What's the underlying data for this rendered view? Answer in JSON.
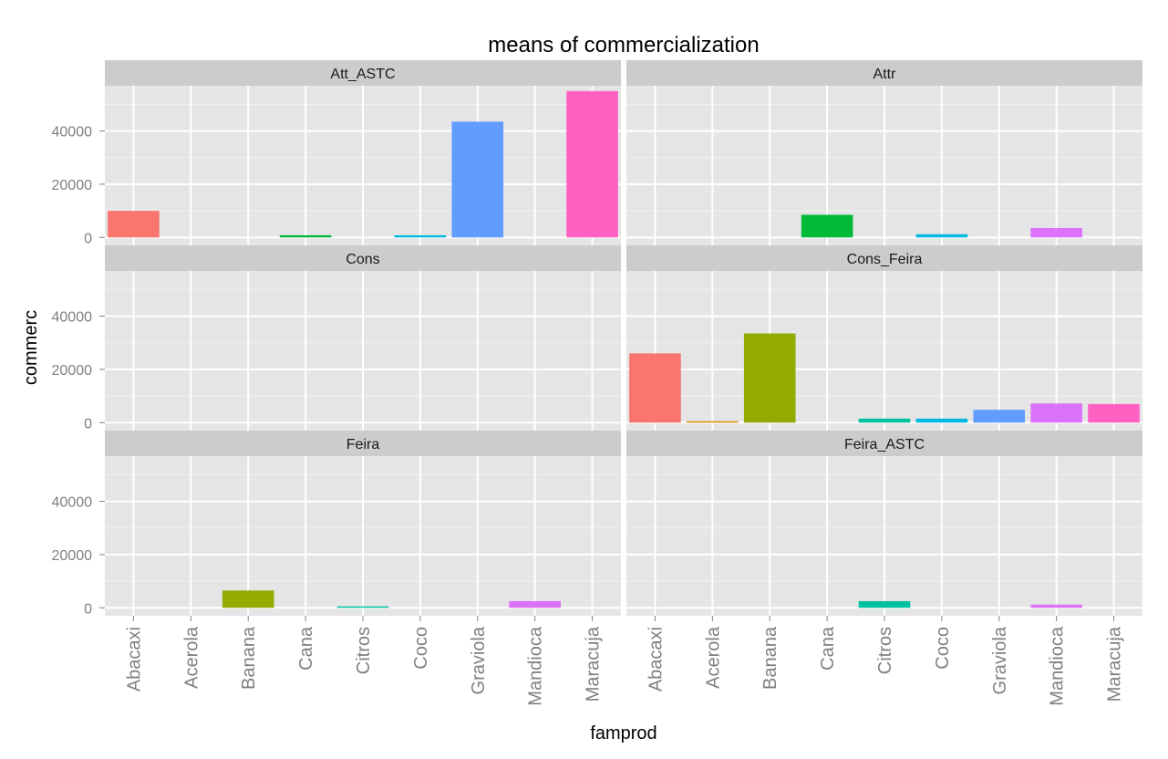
{
  "chart_data": {
    "type": "bar",
    "title": "means of commercialization",
    "xlabel": "famprod",
    "ylabel": "commerc",
    "facet_layout": "2 columns x 3 rows",
    "grid": true,
    "legend": "none",
    "ylim": [
      -3000,
      57000
    ],
    "yticks": [
      0,
      20000,
      40000
    ],
    "categories": [
      "Abacaxi",
      "Acerola",
      "Banana",
      "Cana",
      "Citros",
      "Coco",
      "Graviola",
      "Mandioca",
      "Maracuja"
    ],
    "category_colors": [
      "#F8766D",
      "#D39200",
      "#93AA00",
      "#00BA38",
      "#00C19F",
      "#00B9E3",
      "#619CFF",
      "#DB72FB",
      "#FF61C3"
    ],
    "panel_background": "#E5E5E5",
    "strip_background": "#CCCCCC",
    "panels": [
      {
        "name": "Att_ASTC",
        "values": [
          10000,
          0,
          0,
          800,
          0,
          800,
          43500,
          0,
          55000
        ]
      },
      {
        "name": "Attr",
        "values": [
          0,
          0,
          0,
          8500,
          0,
          1200,
          0,
          3500,
          0
        ]
      },
      {
        "name": "Cons",
        "values": [
          0,
          0,
          0,
          0,
          0,
          0,
          0,
          0,
          0
        ]
      },
      {
        "name": "Cons_Feira",
        "values": [
          26000,
          500,
          33500,
          0,
          1500,
          1500,
          4800,
          7200,
          7000
        ]
      },
      {
        "name": "Feira",
        "values": [
          0,
          0,
          6500,
          0,
          500,
          0,
          0,
          2500,
          0
        ]
      },
      {
        "name": "Feira_ASTC",
        "values": [
          0,
          0,
          0,
          0,
          2500,
          0,
          0,
          1200,
          0
        ]
      }
    ]
  }
}
